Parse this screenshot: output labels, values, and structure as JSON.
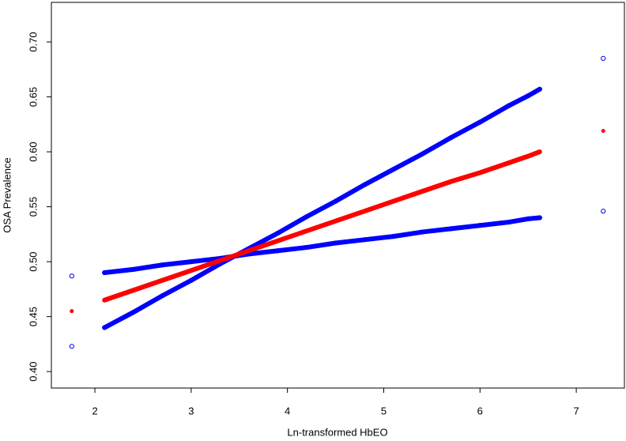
{
  "chart_data": {
    "type": "scatter",
    "x_label": "Ln-transformed HbEO",
    "y_label": "OSA Prevalence",
    "x": [
      1.76,
      2.1,
      2.4,
      2.7,
      3.0,
      3.3,
      3.6,
      3.9,
      4.2,
      4.5,
      4.8,
      5.1,
      5.4,
      5.7,
      6.0,
      6.3,
      6.5,
      6.62,
      7.28
    ],
    "series": [
      {
        "color": "#0000ff",
        "filled": false,
        "values": [
          0.487,
          0.49,
          0.493,
          0.497,
          0.5,
          0.503,
          0.507,
          0.51,
          0.513,
          0.517,
          0.52,
          0.523,
          0.527,
          0.53,
          0.533,
          0.536,
          0.539,
          0.54,
          0.546
        ]
      },
      {
        "color": "#0000ff",
        "filled": false,
        "values": [
          0.423,
          0.44,
          0.454,
          0.469,
          0.483,
          0.498,
          0.512,
          0.526,
          0.541,
          0.555,
          0.57,
          0.584,
          0.598,
          0.613,
          0.627,
          0.642,
          0.651,
          0.657,
          0.685
        ]
      },
      {
        "color": "#ff0000",
        "filled": true,
        "values": [
          0.455,
          0.465,
          0.474,
          0.483,
          0.492,
          0.501,
          0.51,
          0.519,
          0.528,
          0.537,
          0.546,
          0.555,
          0.564,
          0.573,
          0.581,
          0.59,
          0.596,
          0.6,
          0.619
        ]
      }
    ],
    "xlim": [
      1.548,
      7.5
    ],
    "ylim": [
      0.385,
      0.736
    ],
    "xticks": [
      2,
      3,
      4,
      5,
      6,
      7
    ],
    "yticks": [
      {
        "value": 0.4,
        "label": "0.40"
      },
      {
        "value": 0.45,
        "label": "0.45"
      },
      {
        "value": 0.5,
        "label": "0.50"
      },
      {
        "value": 0.55,
        "label": "0.55"
      },
      {
        "value": 0.6,
        "label": "0.60"
      },
      {
        "value": 0.65,
        "label": "0.65"
      },
      {
        "value": 0.7,
        "label": "0.70"
      }
    ]
  }
}
